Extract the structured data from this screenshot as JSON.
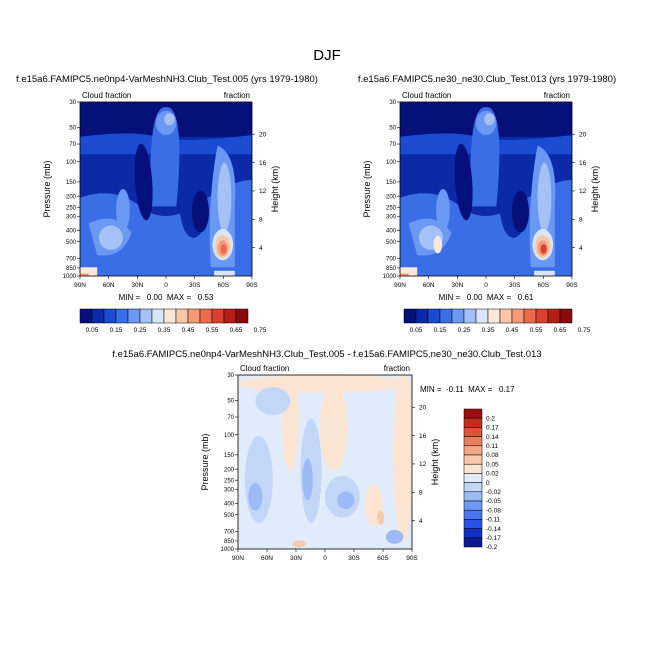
{
  "page": {
    "title": "DJF"
  },
  "colors": {
    "abs_levels": [
      "#05107a",
      "#0a2aa8",
      "#1a4bd0",
      "#3a6ee6",
      "#6a98f2",
      "#a4c2f8",
      "#d7e6fc",
      "#fde8d9",
      "#f9c6aa",
      "#f49a78",
      "#ea6b4c",
      "#d9412e",
      "#b51d17",
      "#8a0a0a"
    ],
    "diff_levels": [
      "#0a1a8c",
      "#1230c8",
      "#2a52e4",
      "#4a74f0",
      "#7199f4",
      "#9cbaf6",
      "#c2d6f8",
      "#e0ebfb",
      "#fbe4d2",
      "#f7caae",
      "#f2a886",
      "#e87f5e",
      "#d8553a",
      "#c02e1e",
      "#9a1010"
    ]
  },
  "chart_data": [
    {
      "type": "heatmap",
      "title": "f.e15a6.FAMIPC5.ne0np4-VarMeshNH3.Club_Test.005 (yrs 1979-1980)",
      "left_subtitle": "Cloud fraction",
      "right_subtitle": "fraction",
      "xlabel": "",
      "ylabel": "Pressure (mb)",
      "y2label": "Height (km)",
      "x_ticks": [
        "90N",
        "60N",
        "30N",
        "0",
        "30S",
        "60S",
        "90S"
      ],
      "y_ticks": [
        "30",
        "50",
        "70",
        "100",
        "150",
        "200",
        "250",
        "300",
        "400",
        "500",
        "700",
        "850",
        "1000"
      ],
      "y2_ticks": [
        "20",
        "16",
        "12",
        "8",
        "4"
      ],
      "stats": "MIN =   0.00  MAX =   0.53",
      "min": 0.0,
      "max": 0.53,
      "colorbar_labels": [
        "0.05",
        "0.15",
        "0.25",
        "0.35",
        "0.45",
        "0.55",
        "0.65",
        "0.75"
      ],
      "ylim": [
        1000,
        30
      ]
    },
    {
      "type": "heatmap",
      "title": "f.e15a6.FAMIPC5.ne30_ne30.Club_Test.013 (yrs 1979-1980)",
      "left_subtitle": "Cloud fraction",
      "right_subtitle": "fraction",
      "xlabel": "",
      "ylabel": "Pressure (mb)",
      "y2label": "Height (km)",
      "x_ticks": [
        "90N",
        "60N",
        "30N",
        "0",
        "30S",
        "60S",
        "90S"
      ],
      "y_ticks": [
        "30",
        "50",
        "70",
        "100",
        "150",
        "200",
        "250",
        "300",
        "400",
        "500",
        "700",
        "850",
        "1000"
      ],
      "y2_ticks": [
        "20",
        "16",
        "12",
        "8",
        "4"
      ],
      "stats": "MIN =   0.00  MAX =   0.61",
      "min": 0.0,
      "max": 0.61,
      "colorbar_labels": [
        "0.05",
        "0.15",
        "0.25",
        "0.35",
        "0.45",
        "0.55",
        "0.65",
        "0.75"
      ],
      "ylim": [
        1000,
        30
      ]
    },
    {
      "type": "heatmap",
      "title": "f.e15a6.FAMIPC5.ne0np4-VarMeshNH3.Club_Test.005 - f.e15a6.FAMIPC5.ne30_ne30.Club_Test.013",
      "left_subtitle": "Cloud fraction",
      "right_subtitle": "fraction",
      "xlabel": "",
      "ylabel": "Pressure (mb)",
      "y2label": "Height (km)",
      "x_ticks": [
        "90N",
        "60N",
        "30N",
        "0",
        "30S",
        "60S",
        "90S"
      ],
      "y_ticks": [
        "30",
        "50",
        "70",
        "100",
        "150",
        "200",
        "250",
        "300",
        "400",
        "500",
        "700",
        "850",
        "1000"
      ],
      "y2_ticks": [
        "20",
        "16",
        "12",
        "8",
        "4"
      ],
      "stats": "MIN =  -0.11  MAX =   0.17",
      "min": -0.11,
      "max": 0.17,
      "colorbar_labels": [
        "0.2",
        "0.17",
        "0.14",
        "0.11",
        "0.08",
        "0.05",
        "0.02",
        "0",
        "-0.02",
        "-0.05",
        "-0.08",
        "-0.11",
        "-0.14",
        "-0.17",
        "-0.2"
      ],
      "ylim": [
        1000,
        30
      ]
    }
  ]
}
